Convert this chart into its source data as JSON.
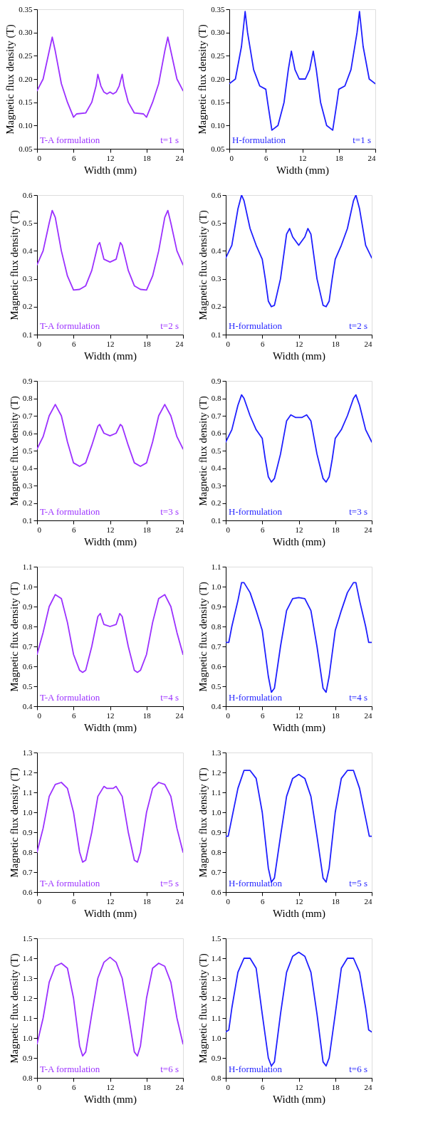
{
  "chart_data": [
    {
      "type": "line",
      "xlabel": "Width (mm)",
      "ylabel": "Magnetic flux density (T)",
      "annotations": [
        "T-A formulation",
        "t=1 s"
      ],
      "xlim": [
        0,
        24
      ],
      "xticks": [
        0,
        6,
        12,
        18,
        24
      ],
      "ylim": [
        0.05,
        0.35
      ],
      "yticks": [
        {
          "value": 0.05,
          "label": "0.05"
        },
        {
          "value": 0.1,
          "label": "0.10"
        },
        {
          "value": 0.15,
          "label": "0.15"
        },
        {
          "value": 0.2,
          "label": "0.20"
        },
        {
          "value": 0.25,
          "label": "0.25"
        },
        {
          "value": 0.3,
          "label": "0.30"
        },
        {
          "value": 0.35,
          "label": "0.35"
        }
      ],
      "line_style": "solid",
      "series": [
        {
          "color": "#9b30ff",
          "x": [
            0,
            1,
            2,
            2.5,
            3,
            4,
            5,
            6,
            6.5,
            8,
            9,
            9.7,
            10,
            10.5,
            11,
            11.5,
            12,
            12.5,
            13,
            13.5,
            14,
            14.3,
            15,
            16,
            17.5,
            18,
            19,
            20,
            21,
            21.5,
            22,
            23,
            24
          ],
          "values": [
            0.175,
            0.2,
            0.26,
            0.29,
            0.26,
            0.19,
            0.15,
            0.118,
            0.125,
            0.127,
            0.15,
            0.185,
            0.21,
            0.185,
            0.172,
            0.168,
            0.172,
            0.168,
            0.172,
            0.185,
            0.21,
            0.185,
            0.15,
            0.127,
            0.125,
            0.118,
            0.15,
            0.19,
            0.26,
            0.29,
            0.26,
            0.2,
            0.175
          ]
        }
      ]
    },
    {
      "type": "line",
      "xlabel": "Width (mm)",
      "ylabel": "Magnetic flux density (T)",
      "annotations": [
        "H-formulation",
        "t=1 s"
      ],
      "xlim": [
        0,
        24
      ],
      "xticks": [
        0,
        6,
        12,
        18,
        24
      ],
      "ylim": [
        0.05,
        0.35
      ],
      "yticks": [
        {
          "value": 0.05,
          "label": "0.05"
        },
        {
          "value": 0.1,
          "label": "0.10"
        },
        {
          "value": 0.15,
          "label": "0.15"
        },
        {
          "value": 0.2,
          "label": "0.20"
        },
        {
          "value": 0.25,
          "label": "0.25"
        },
        {
          "value": 0.3,
          "label": "0.30"
        },
        {
          "value": 0.35,
          "label": "0.35"
        }
      ],
      "line_style": "solid",
      "series": [
        {
          "color": "#1f1fff",
          "x": [
            0,
            1,
            2,
            2.6,
            3,
            4,
            5,
            6,
            6.3,
            7,
            8,
            9,
            9.7,
            10.2,
            10.8,
            11.5,
            12,
            12.5,
            13.2,
            13.8,
            14.3,
            15,
            16,
            17,
            17.7,
            18,
            19,
            20,
            21,
            21.4,
            22,
            23,
            24
          ],
          "values": [
            0.19,
            0.2,
            0.27,
            0.345,
            0.3,
            0.22,
            0.185,
            0.178,
            0.15,
            0.09,
            0.1,
            0.15,
            0.22,
            0.26,
            0.22,
            0.2,
            0.2,
            0.2,
            0.22,
            0.26,
            0.22,
            0.15,
            0.1,
            0.09,
            0.15,
            0.178,
            0.185,
            0.22,
            0.3,
            0.345,
            0.27,
            0.2,
            0.19
          ]
        }
      ]
    },
    {
      "type": "line",
      "xlabel": "Width (mm)",
      "ylabel": "Magnetic flux density (T)",
      "annotations": [
        "T-A formulation",
        "t=2 s"
      ],
      "xlim": [
        0,
        24
      ],
      "xticks": [
        0,
        6,
        12,
        18,
        24
      ],
      "ylim": [
        0.1,
        0.6
      ],
      "yticks": [
        0.1,
        0.2,
        0.3,
        0.4,
        0.5,
        0.6
      ],
      "line_style": "solid",
      "series": [
        {
          "color": "#9b30ff",
          "x": [
            0,
            1,
            2,
            2.5,
            3,
            4,
            5,
            6,
            7,
            8,
            9,
            10,
            10.3,
            11,
            12,
            13,
            13.7,
            14,
            15,
            16,
            17,
            18,
            19,
            20,
            21,
            21.5,
            22,
            23,
            24
          ],
          "values": [
            0.35,
            0.4,
            0.5,
            0.545,
            0.52,
            0.4,
            0.31,
            0.26,
            0.262,
            0.275,
            0.33,
            0.42,
            0.43,
            0.37,
            0.36,
            0.37,
            0.43,
            0.42,
            0.33,
            0.275,
            0.262,
            0.26,
            0.31,
            0.4,
            0.52,
            0.545,
            0.5,
            0.4,
            0.35
          ]
        }
      ]
    },
    {
      "type": "line",
      "xlabel": "Width (mm)",
      "ylabel": "Magnetic flux density (T)",
      "annotations": [
        "H-formulation",
        "t=2 s"
      ],
      "xlim": [
        0,
        24
      ],
      "xticks": [
        0,
        6,
        12,
        18,
        24
      ],
      "ylim": [
        0.1,
        0.6
      ],
      "yticks": [
        0.1,
        0.2,
        0.3,
        0.4,
        0.5,
        0.6
      ],
      "line_style": "solid",
      "series": [
        {
          "color": "#1f1fff",
          "x": [
            0,
            1,
            2,
            2.6,
            3,
            4,
            5,
            6,
            6.5,
            7,
            7.5,
            8,
            9,
            10,
            10.5,
            11,
            12,
            13,
            13.5,
            14,
            15,
            16,
            16.5,
            17,
            17.5,
            18,
            19,
            20,
            21,
            21.4,
            22,
            23,
            24
          ],
          "values": [
            0.375,
            0.42,
            0.55,
            0.6,
            0.58,
            0.48,
            0.42,
            0.37,
            0.3,
            0.22,
            0.2,
            0.205,
            0.3,
            0.46,
            0.48,
            0.45,
            0.42,
            0.45,
            0.48,
            0.46,
            0.3,
            0.205,
            0.2,
            0.22,
            0.3,
            0.37,
            0.42,
            0.48,
            0.58,
            0.6,
            0.55,
            0.42,
            0.375
          ]
        }
      ]
    },
    {
      "type": "line",
      "xlabel": "Width (mm)",
      "ylabel": "Magnetic flux density (T)",
      "annotations": [
        "T-A formulation",
        "t=3 s"
      ],
      "xlim": [
        0,
        24
      ],
      "xticks": [
        0,
        6,
        12,
        18,
        24
      ],
      "ylim": [
        0.1,
        0.9
      ],
      "yticks": [
        0.1,
        0.2,
        0.3,
        0.4,
        0.5,
        0.6,
        0.7,
        0.8,
        0.9
      ],
      "line_style": "solid",
      "series": [
        {
          "color": "#9b30ff",
          "x": [
            0,
            1,
            2,
            3,
            4,
            5,
            6,
            7,
            8,
            9,
            10,
            10.3,
            11,
            12,
            13,
            13.7,
            14,
            15,
            16,
            17,
            18,
            19,
            20,
            21,
            22,
            23,
            24
          ],
          "values": [
            0.51,
            0.58,
            0.7,
            0.765,
            0.7,
            0.55,
            0.43,
            0.41,
            0.43,
            0.53,
            0.64,
            0.65,
            0.6,
            0.585,
            0.6,
            0.65,
            0.64,
            0.53,
            0.43,
            0.41,
            0.43,
            0.55,
            0.7,
            0.765,
            0.7,
            0.58,
            0.51
          ]
        }
      ]
    },
    {
      "type": "line",
      "xlabel": "Width (mm)",
      "ylabel": "Magnetic flux density (T)",
      "annotations": [
        "H-formulation",
        "t=3 s"
      ],
      "xlim": [
        0,
        24
      ],
      "xticks": [
        0,
        6,
        12,
        18,
        24
      ],
      "ylim": [
        0.1,
        0.9
      ],
      "yticks": [
        0.1,
        0.2,
        0.3,
        0.4,
        0.5,
        0.6,
        0.7,
        0.8,
        0.9
      ],
      "line_style": "solid",
      "series": [
        {
          "color": "#1f1fff",
          "x": [
            0,
            1,
            2,
            2.6,
            3,
            4,
            5,
            6,
            6.5,
            7,
            7.5,
            8,
            9,
            10,
            10.7,
            11.5,
            12,
            12.5,
            13.3,
            14,
            15,
            16,
            16.5,
            17,
            17.5,
            18,
            19,
            20,
            21,
            21.4,
            22,
            23,
            24
          ],
          "values": [
            0.55,
            0.62,
            0.76,
            0.82,
            0.8,
            0.7,
            0.62,
            0.57,
            0.45,
            0.35,
            0.32,
            0.34,
            0.48,
            0.67,
            0.705,
            0.69,
            0.69,
            0.69,
            0.705,
            0.67,
            0.48,
            0.34,
            0.32,
            0.35,
            0.45,
            0.57,
            0.62,
            0.7,
            0.8,
            0.82,
            0.76,
            0.62,
            0.55
          ]
        }
      ]
    },
    {
      "type": "line",
      "xlabel": "Width (mm)",
      "ylabel": "Magnetic flux density (T)",
      "annotations": [
        "T-A formulation",
        "t=4 s"
      ],
      "xlim": [
        0,
        24
      ],
      "xticks": [
        0,
        6,
        12,
        18,
        24
      ],
      "ylim": [
        0.4,
        1.1
      ],
      "yticks": [
        0.4,
        0.5,
        0.6,
        0.7,
        0.8,
        0.9,
        {
          "value": 1.0,
          "label": "1.0"
        },
        1.1
      ],
      "line_style": "solid",
      "series": [
        {
          "color": "#9b30ff",
          "x": [
            0,
            1,
            2,
            3,
            4,
            5,
            6,
            7,
            7.5,
            8,
            9,
            10,
            10.4,
            11,
            12,
            13,
            13.6,
            14,
            15,
            16,
            16.5,
            17,
            18,
            19,
            20,
            21,
            22,
            23,
            24
          ],
          "values": [
            0.66,
            0.77,
            0.9,
            0.96,
            0.94,
            0.82,
            0.66,
            0.58,
            0.57,
            0.58,
            0.7,
            0.85,
            0.865,
            0.81,
            0.8,
            0.81,
            0.865,
            0.85,
            0.7,
            0.58,
            0.57,
            0.58,
            0.66,
            0.82,
            0.94,
            0.96,
            0.9,
            0.77,
            0.66
          ]
        }
      ]
    },
    {
      "type": "line",
      "xlabel": "Width (mm)",
      "ylabel": "Magnetic flux density (T)",
      "annotations": [
        "H-formulation",
        "t=4 s"
      ],
      "xlim": [
        0,
        24
      ],
      "xticks": [
        0,
        6,
        12,
        18,
        24
      ],
      "ylim": [
        0.4,
        1.1
      ],
      "yticks": [
        0.4,
        0.5,
        0.6,
        0.7,
        0.8,
        0.9,
        {
          "value": 1.0,
          "label": "1.0"
        },
        1.1
      ],
      "line_style": "solid",
      "series": [
        {
          "color": "#1f1fff",
          "x": [
            0,
            0.5,
            1,
            2,
            2.6,
            3,
            4,
            5,
            6,
            7,
            7.5,
            8,
            9,
            10,
            11,
            12,
            13,
            14,
            15,
            16,
            16.5,
            17,
            18,
            19,
            20,
            21,
            21.4,
            22,
            23,
            23.5,
            24
          ],
          "values": [
            0.72,
            0.72,
            0.8,
            0.93,
            1.02,
            1.02,
            0.97,
            0.88,
            0.78,
            0.55,
            0.47,
            0.49,
            0.7,
            0.88,
            0.94,
            0.945,
            0.94,
            0.88,
            0.7,
            0.49,
            0.47,
            0.55,
            0.78,
            0.88,
            0.97,
            1.02,
            1.02,
            0.93,
            0.8,
            0.72,
            0.72
          ]
        }
      ]
    },
    {
      "type": "line",
      "xlabel": "Width (mm)",
      "ylabel": "Magnetic flux density (T)",
      "annotations": [
        "T-A formulation",
        "t=5 s"
      ],
      "xlim": [
        0,
        24
      ],
      "xticks": [
        0,
        6,
        12,
        18,
        24
      ],
      "ylim": [
        0.6,
        1.3
      ],
      "yticks": [
        0.6,
        0.7,
        0.8,
        0.9,
        {
          "value": 1.0,
          "label": "1.0"
        },
        1.1,
        1.2,
        1.3
      ],
      "line_style": "solid",
      "series": [
        {
          "color": "#9b30ff",
          "x": [
            0,
            1,
            2,
            3,
            4,
            5,
            6,
            7,
            7.5,
            8,
            9,
            10,
            11,
            11.5,
            12,
            12.5,
            13,
            14,
            15,
            16,
            16.5,
            17,
            18,
            19,
            20,
            21,
            22,
            23,
            24
          ],
          "values": [
            0.8,
            0.92,
            1.08,
            1.14,
            1.15,
            1.12,
            1.0,
            0.8,
            0.75,
            0.76,
            0.9,
            1.08,
            1.13,
            1.12,
            1.12,
            1.12,
            1.13,
            1.08,
            0.9,
            0.76,
            0.75,
            0.8,
            1.0,
            1.12,
            1.15,
            1.14,
            1.08,
            0.92,
            0.8
          ]
        }
      ]
    },
    {
      "type": "line",
      "xlabel": "Width (mm)",
      "ylabel": "Magnetic flux density (T)",
      "annotations": [
        "H-formulation",
        "t=5 s"
      ],
      "xlim": [
        0,
        24
      ],
      "xticks": [
        0,
        6,
        12,
        18,
        24
      ],
      "ylim": [
        0.6,
        1.3
      ],
      "yticks": [
        0.6,
        0.7,
        0.8,
        0.9,
        {
          "value": 1.0,
          "label": "1.0"
        },
        1.1,
        1.2,
        1.3
      ],
      "line_style": "solid",
      "series": [
        {
          "color": "#1f1fff",
          "x": [
            0,
            0.4,
            1,
            2,
            3,
            4,
            5,
            6,
            7,
            7.5,
            8,
            9,
            10,
            11,
            12,
            13,
            14,
            15,
            16,
            16.5,
            17,
            18,
            19,
            20,
            21,
            22,
            23,
            23.6,
            24
          ],
          "values": [
            0.88,
            0.88,
            0.97,
            1.12,
            1.21,
            1.21,
            1.17,
            1.0,
            0.72,
            0.65,
            0.67,
            0.88,
            1.08,
            1.17,
            1.19,
            1.17,
            1.08,
            0.88,
            0.67,
            0.65,
            0.72,
            1.0,
            1.17,
            1.21,
            1.21,
            1.12,
            0.97,
            0.88,
            0.88
          ]
        }
      ]
    },
    {
      "type": "line",
      "xlabel": "Width (mm)",
      "ylabel": "Magnetic flux density (T)",
      "annotations": [
        "T-A formulation",
        "t=6 s"
      ],
      "xlim": [
        0,
        24
      ],
      "xticks": [
        0,
        6,
        12,
        18,
        24
      ],
      "ylim": [
        0.8,
        1.5
      ],
      "yticks": [
        0.8,
        0.9,
        {
          "value": 1.0,
          "label": "1.0"
        },
        1.1,
        1.2,
        1.3,
        1.4,
        1.5
      ],
      "line_style": "solid",
      "series": [
        {
          "color": "#9b30ff",
          "x": [
            0,
            1,
            2,
            3,
            4,
            5,
            6,
            7,
            7.5,
            8,
            9,
            10,
            11,
            12,
            13,
            14,
            15,
            16,
            16.5,
            17,
            18,
            19,
            20,
            21,
            22,
            23,
            24
          ],
          "values": [
            0.97,
            1.1,
            1.28,
            1.36,
            1.375,
            1.35,
            1.2,
            0.96,
            0.91,
            0.93,
            1.12,
            1.3,
            1.38,
            1.405,
            1.38,
            1.3,
            1.12,
            0.93,
            0.91,
            0.96,
            1.2,
            1.35,
            1.375,
            1.36,
            1.28,
            1.1,
            0.97
          ]
        }
      ]
    },
    {
      "type": "line",
      "xlabel": "Width (mm)",
      "ylabel": "Magnetic flux density (T)",
      "annotations": [
        "H-formulation",
        "t=6 s"
      ],
      "xlim": [
        0,
        24
      ],
      "xticks": [
        0,
        6,
        12,
        18,
        24
      ],
      "ylim": [
        0.8,
        1.5
      ],
      "yticks": [
        0.8,
        0.9,
        {
          "value": 1.0,
          "label": "1.0"
        },
        1.1,
        1.2,
        1.3,
        1.4,
        1.5
      ],
      "line_style": "solid",
      "series": [
        {
          "color": "#1f1fff",
          "x": [
            0,
            0.5,
            1,
            2,
            3,
            4,
            5,
            6,
            7,
            7.5,
            8,
            9,
            10,
            11,
            12,
            13,
            14,
            15,
            16,
            16.5,
            17,
            18,
            19,
            20,
            21,
            22,
            23,
            23.5,
            24
          ],
          "values": [
            1.03,
            1.04,
            1.15,
            1.33,
            1.4,
            1.4,
            1.35,
            1.12,
            0.9,
            0.86,
            0.88,
            1.12,
            1.33,
            1.41,
            1.43,
            1.41,
            1.33,
            1.12,
            0.88,
            0.86,
            0.9,
            1.12,
            1.35,
            1.4,
            1.4,
            1.33,
            1.15,
            1.04,
            1.03
          ]
        }
      ]
    }
  ]
}
